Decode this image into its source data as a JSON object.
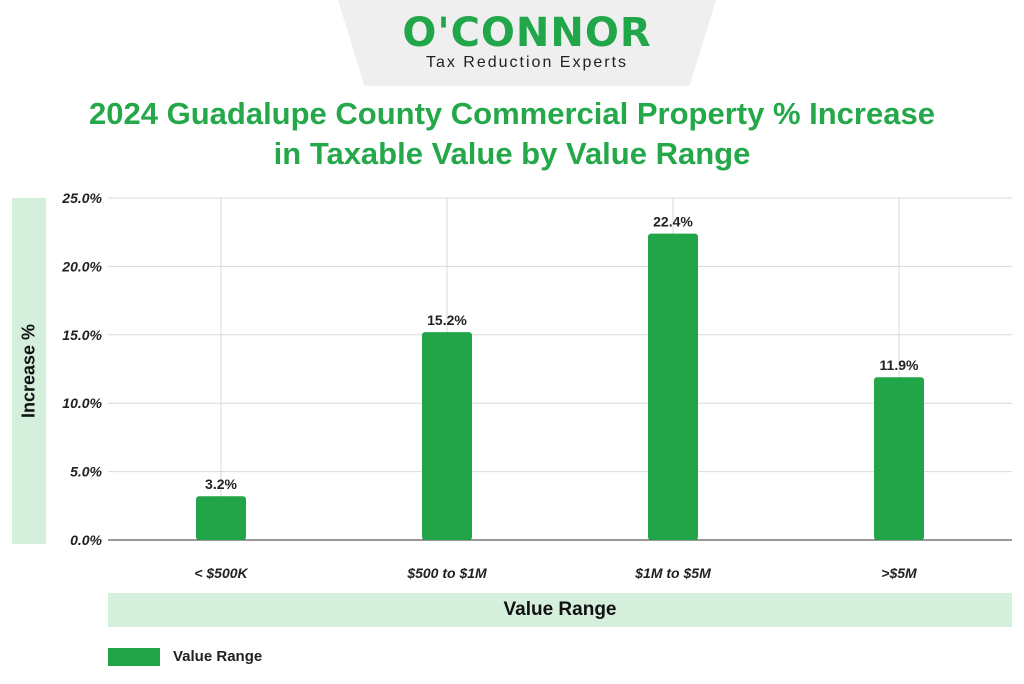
{
  "logo": {
    "brand": "O'CONNOR",
    "tagline": "Tax Reduction Experts"
  },
  "colors": {
    "accent": "#22a549",
    "band": "#d4efdc",
    "grid": "#d9d9d9"
  },
  "chart_data": {
    "type": "bar",
    "title_lines": [
      "2024 Guadalupe County Commercial Property % Increase",
      "in Taxable Value by Value Range"
    ],
    "xlabel": "Value Range",
    "ylabel": "Increase %",
    "categories": [
      "< $500K",
      "$500 to $1M",
      "$1M to $5M",
      ">$5M"
    ],
    "series": [
      {
        "name": "Value Range",
        "values": [
          3.2,
          15.2,
          22.4,
          11.9
        ]
      }
    ],
    "data_labels": [
      "3.2%",
      "15.2%",
      "22.4%",
      "11.9%"
    ],
    "ylim": [
      0,
      25
    ],
    "yticks": [
      0,
      5,
      10,
      15,
      20,
      25
    ],
    "ytick_labels": [
      "0.0%",
      "5.0%",
      "10.0%",
      "15.0%",
      "20.0%",
      "25.0%"
    ],
    "grid": true,
    "legend": "bottom-left"
  }
}
